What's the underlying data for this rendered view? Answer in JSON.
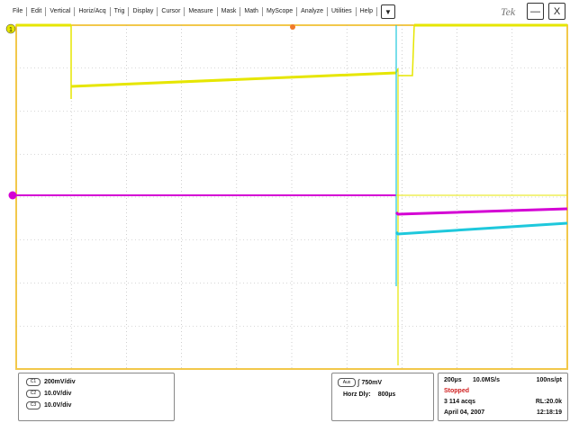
{
  "menu": {
    "items": [
      "File",
      "Edit",
      "Vertical",
      "Horiz/Acq",
      "Trig",
      "Display",
      "Cursor",
      "Measure",
      "Mask",
      "Math",
      "MyScope",
      "Analyze",
      "Utilities",
      "Help"
    ],
    "dropdown_glyph": "▼",
    "brand": "Tek",
    "minimize_glyph": "—",
    "close_glyph": "X"
  },
  "markers": {
    "ch1": "1",
    "trigger_level": "T"
  },
  "channels": [
    {
      "badge": "C1",
      "scale": "200mV/div"
    },
    {
      "badge": "C2",
      "scale": "10.0V/div"
    },
    {
      "badge": "C3",
      "scale": "10.0V/div"
    }
  ],
  "trigger": {
    "badge": "Aux",
    "slope_glyph": "∫",
    "level": "750mV",
    "delay_label": "Horz Dly:",
    "delay_value": "800µs"
  },
  "acquisition": {
    "time_div": "200µs",
    "sample_rate": "10.0MS/s",
    "resolution": "100ns/pt",
    "status": "Stopped",
    "acqs": "3 114 acqs",
    "record_length": "RL:20.0k",
    "date": "April 04, 2007",
    "time": "12:18:19"
  },
  "colors": {
    "ch1": "#e6e600",
    "ch2": "#d400d4",
    "ch3": "#1ec8dc",
    "grid": "#b0b0b0",
    "frame": "#f2c84b",
    "status_stopped": "#d02020"
  }
}
